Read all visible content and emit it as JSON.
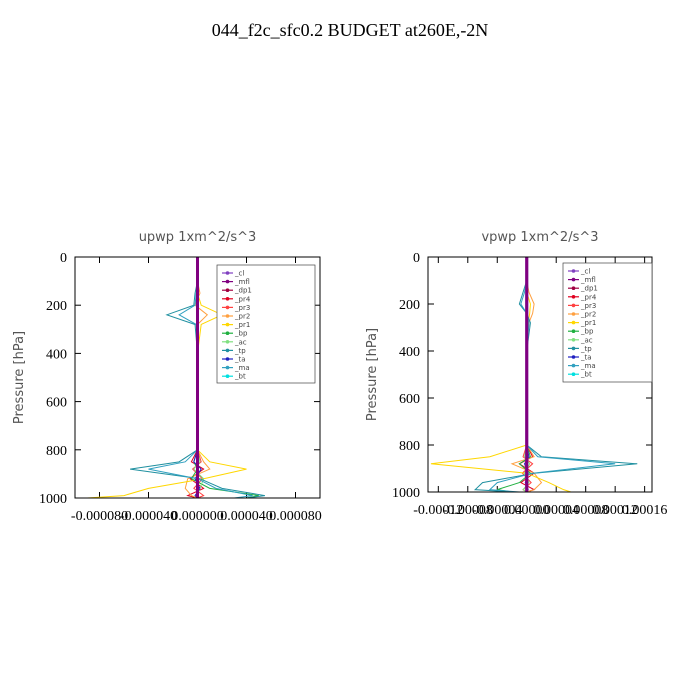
{
  "title": "044_f2c_sfc0.2  BUDGET at260E,-2N",
  "chart_data": [
    {
      "type": "line",
      "title": "upwp   1xm^2/s^3",
      "ylabel": "Pressure [hPa]",
      "y": [
        0,
        100,
        150,
        200,
        240,
        280,
        400,
        600,
        800,
        850,
        880,
        920,
        960,
        990,
        1000
      ],
      "xlim": [
        -0.0001,
        0.0001
      ],
      "ylim": [
        1000,
        0
      ],
      "xticks": [
        {
          "value": -8e-05,
          "label": "-0.000080"
        },
        {
          "value": -4e-05,
          "label": "-0.000040"
        },
        {
          "value": 0,
          "label": "0.000000"
        },
        {
          "value": 4e-05,
          "label": "0.000040"
        },
        {
          "value": 8e-05,
          "label": "0.000080"
        }
      ],
      "yticks": [
        0,
        200,
        400,
        600,
        800,
        1000
      ],
      "series": [
        {
          "name": "_cl",
          "color": "#8040c0",
          "width": 3,
          "values": [
            0,
            0,
            0,
            0,
            0,
            0,
            0,
            0,
            0,
            0,
            0,
            0,
            0,
            0,
            0
          ]
        },
        {
          "name": "_mfl",
          "color": "#800080",
          "width": 3,
          "values": [
            0,
            0,
            0,
            0,
            0,
            0,
            0,
            0,
            0,
            0,
            0,
            0,
            0,
            0,
            0
          ]
        },
        {
          "name": "_dp1",
          "color": "#a00040",
          "width": 1,
          "values": [
            0,
            0,
            0,
            0,
            0,
            0,
            0,
            0,
            0,
            0,
            0,
            0,
            0,
            0,
            0
          ]
        },
        {
          "name": "_pr4",
          "color": "#e00020",
          "width": 1,
          "values": [
            0,
            0,
            0,
            0,
            0,
            0,
            0,
            0,
            0,
            -5e-06,
            5e-06,
            -6e-06,
            5e-06,
            -8e-06,
            0
          ]
        },
        {
          "name": "_pr3",
          "color": "#ff4040",
          "width": 1,
          "values": [
            0,
            0,
            0,
            0,
            0,
            0,
            0,
            0,
            0,
            3e-06,
            -4e-06,
            4e-06,
            -3e-06,
            5e-06,
            0
          ]
        },
        {
          "name": "_pr2",
          "color": "#ffa040",
          "width": 1,
          "values": [
            0,
            0,
            2e-06,
            -2e-06,
            8e-06,
            0,
            0,
            0,
            0,
            5e-06,
            1e-05,
            -8e-06,
            -1e-05,
            -5e-06,
            0
          ]
        },
        {
          "name": "_pr1",
          "color": "#ffd700",
          "width": 1,
          "values": [
            0,
            0,
            0,
            3e-06,
            2e-05,
            3e-06,
            0,
            0,
            0,
            1e-05,
            4e-05,
            5e-06,
            -4e-05,
            -6e-05,
            -9e-05
          ]
        },
        {
          "name": "_bp",
          "color": "#20b040",
          "width": 1,
          "values": [
            0,
            0,
            0,
            0,
            0,
            0,
            0,
            0,
            0,
            -3e-06,
            0,
            -5e-06,
            1e-05,
            5e-05,
            4e-05
          ]
        },
        {
          "name": "_ac",
          "color": "#80e080",
          "width": 1,
          "values": [
            0,
            0,
            0,
            0,
            0,
            0,
            0,
            0,
            0,
            2e-06,
            -3e-06,
            5e-06,
            2e-06,
            0,
            0
          ]
        },
        {
          "name": "_tp",
          "color": "#2090a0",
          "width": 1,
          "values": [
            0,
            0,
            -2e-06,
            -3e-06,
            -2.5e-05,
            -2e-06,
            0,
            0,
            0,
            -1.5e-05,
            -5.5e-05,
            2e-06,
            2e-05,
            5.5e-05,
            4e-05
          ]
        },
        {
          "name": "_ta",
          "color": "#2020c0",
          "width": 1,
          "values": [
            0,
            0,
            0,
            0,
            0,
            0,
            0,
            0,
            0,
            -3e-06,
            3e-06,
            -2e-06,
            2e-06,
            -2e-06,
            0
          ]
        },
        {
          "name": "_ma",
          "color": "#30a0c0",
          "width": 1,
          "values": [
            0,
            0,
            -1e-06,
            -2e-06,
            -1.5e-05,
            -1e-06,
            0,
            0,
            0,
            -1e-05,
            -4e-05,
            0,
            1.5e-05,
            4.5e-05,
            3e-05
          ]
        },
        {
          "name": "_bt",
          "color": "#00e0e0",
          "width": 1,
          "values": [
            0,
            0,
            0,
            0,
            0,
            0,
            0,
            0,
            0,
            0,
            0,
            0,
            0,
            0,
            0
          ]
        }
      ]
    },
    {
      "type": "line",
      "title": "vpwp   1xm^2/s^3",
      "ylabel": "Pressure [hPa]",
      "y": [
        0,
        100,
        150,
        200,
        240,
        280,
        400,
        600,
        800,
        850,
        880,
        920,
        960,
        990,
        1000
      ],
      "xlim": [
        -0.000134,
        0.00017
      ],
      "ylim": [
        1000,
        0
      ],
      "xticks": [
        {
          "value": -0.00012,
          "label": "-0.00012"
        },
        {
          "value": -8e-05,
          "label": "-0.00008"
        },
        {
          "value": -4e-05,
          "label": "-0.00004"
        },
        {
          "value": 0,
          "label": "0.00000"
        },
        {
          "value": 4e-05,
          "label": "0.00004"
        },
        {
          "value": 8e-05,
          "label": "0.00008"
        },
        {
          "value": 0.00012,
          "label": "0.00012"
        },
        {
          "value": 0.00016,
          "label": "0.00016"
        }
      ],
      "yticks": [
        0,
        200,
        400,
        600,
        800,
        1000
      ],
      "series": [
        {
          "name": "_cl",
          "color": "#8040c0",
          "width": 3,
          "values": [
            0,
            0,
            0,
            0,
            0,
            0,
            0,
            0,
            0,
            0,
            0,
            0,
            0,
            0,
            0
          ]
        },
        {
          "name": "_mfl",
          "color": "#800080",
          "width": 3,
          "values": [
            0,
            0,
            0,
            0,
            0,
            0,
            0,
            0,
            0,
            0,
            0,
            0,
            0,
            0,
            0
          ]
        },
        {
          "name": "_dp1",
          "color": "#a00040",
          "width": 1,
          "values": [
            0,
            0,
            0,
            0,
            0,
            0,
            0,
            0,
            0,
            0,
            0,
            0,
            0,
            0,
            0
          ]
        },
        {
          "name": "_pr4",
          "color": "#e00020",
          "width": 1,
          "values": [
            0,
            0,
            0,
            0,
            0,
            0,
            0,
            0,
            0,
            8e-06,
            -1e-05,
            1e-05,
            -8e-06,
            1e-05,
            0
          ]
        },
        {
          "name": "_pr3",
          "color": "#ff4040",
          "width": 1,
          "values": [
            0,
            0,
            0,
            0,
            0,
            0,
            0,
            0,
            0,
            -5e-06,
            8e-06,
            -6e-06,
            6e-06,
            -5e-06,
            0
          ]
        },
        {
          "name": "_pr2",
          "color": "#ffa040",
          "width": 1,
          "values": [
            0,
            0,
            3e-06,
            1e-05,
            8e-06,
            3e-06,
            0,
            0,
            0,
            1e-05,
            -2e-05,
            1e-05,
            2e-05,
            1e-05,
            0
          ]
        },
        {
          "name": "_pr1",
          "color": "#ffd700",
          "width": 1,
          "values": [
            0,
            0,
            0,
            5e-06,
            4e-06,
            2e-06,
            0,
            0,
            0,
            -5e-05,
            -0.00013,
            0,
            3e-05,
            5e-05,
            6e-05
          ]
        },
        {
          "name": "_bp",
          "color": "#20b040",
          "width": 1,
          "values": [
            0,
            0,
            0,
            0,
            0,
            0,
            0,
            0,
            0,
            5e-06,
            -1e-05,
            5e-06,
            -1e-05,
            -4e-05,
            -2e-05
          ]
        },
        {
          "name": "_ac",
          "color": "#80e080",
          "width": 1,
          "values": [
            0,
            0,
            0,
            0,
            0,
            0,
            0,
            0,
            0,
            -3e-06,
            4e-06,
            -3e-06,
            3e-06,
            -5e-06,
            0
          ]
        },
        {
          "name": "_tp",
          "color": "#2090a0",
          "width": 1,
          "values": [
            0,
            0,
            -5e-06,
            -1e-05,
            0,
            5e-06,
            0,
            0,
            0,
            2e-05,
            0.00015,
            1e-05,
            -6e-05,
            -7e-05,
            -2e-05
          ]
        },
        {
          "name": "_ta",
          "color": "#2020c0",
          "width": 1,
          "values": [
            0,
            0,
            0,
            0,
            0,
            0,
            0,
            0,
            0,
            3e-06,
            -3e-06,
            2e-06,
            -2e-06,
            2e-06,
            0
          ]
        },
        {
          "name": "_ma",
          "color": "#30a0c0",
          "width": 1,
          "values": [
            0,
            0,
            -3e-06,
            -8e-06,
            0,
            3e-06,
            0,
            0,
            0,
            1.5e-05,
            0.00012,
            8e-06,
            -4e-05,
            -5e-05,
            -1e-05
          ]
        },
        {
          "name": "_bt",
          "color": "#00e0e0",
          "width": 1,
          "values": [
            0,
            0,
            0,
            0,
            0,
            0,
            0,
            0,
            0,
            0,
            0,
            0,
            0,
            0,
            0
          ]
        }
      ]
    }
  ]
}
